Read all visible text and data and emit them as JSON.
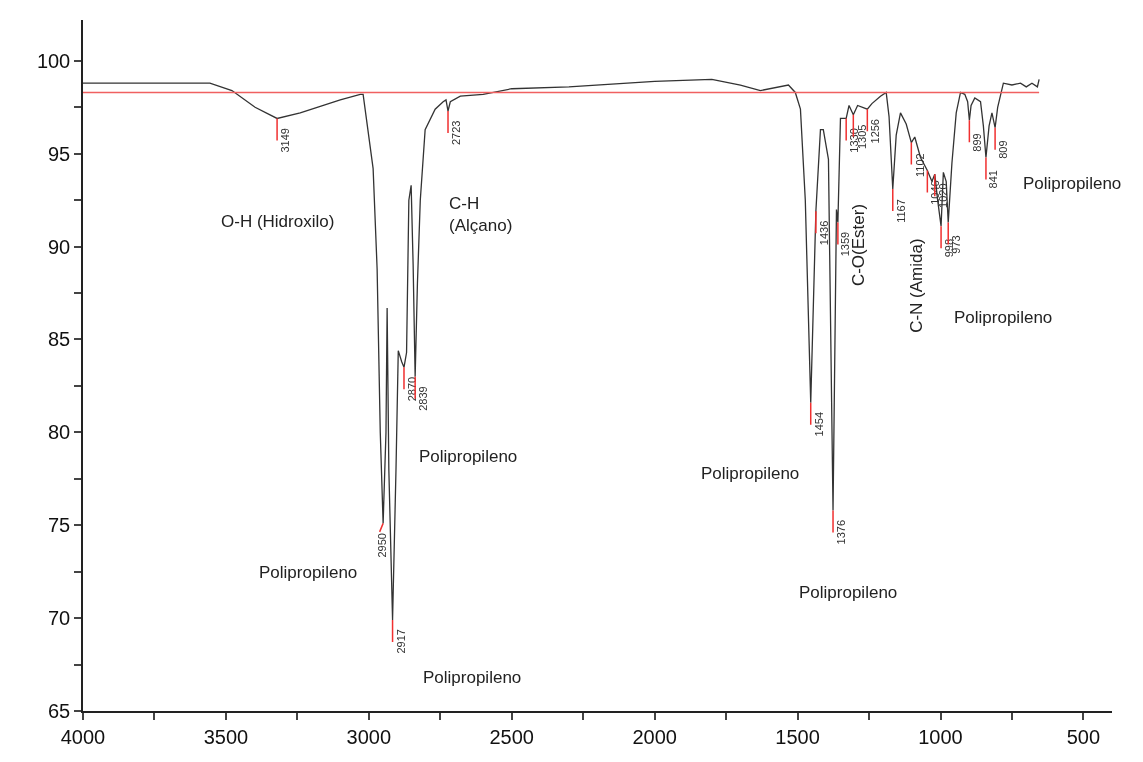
{
  "chart_data": {
    "type": "line",
    "xlim": [
      4000,
      400
    ],
    "ylim": [
      65,
      102.2
    ],
    "xticks": [
      4000,
      {
        "value": 3750,
        "label": null
      },
      3500,
      {
        "value": 3250,
        "label": null
      },
      3000,
      {
        "value": 2750,
        "label": null
      },
      2500,
      {
        "value": 2250,
        "label": null
      },
      2000,
      {
        "value": 1750,
        "label": null
      },
      1500,
      {
        "value": 1250,
        "label": null
      },
      1000,
      {
        "value": 750,
        "label": null
      },
      500
    ],
    "yticks": [
      65,
      {
        "value": 67.5,
        "label": null
      },
      70,
      {
        "value": 72.5,
        "label": null
      },
      75,
      {
        "value": 77.5,
        "label": null
      },
      80,
      {
        "value": 82.5,
        "label": null
      },
      85,
      {
        "value": 87.5,
        "label": null
      },
      90,
      {
        "value": 92.5,
        "label": null
      },
      95,
      {
        "value": 97.5,
        "label": null
      },
      100
    ],
    "grid": false,
    "marker": "none",
    "line_style": "solid",
    "series": [
      {
        "color": "#333333",
        "x": [
          4000,
          3556,
          3479,
          3398,
          3321,
          3240,
          3100,
          3030,
          3020,
          2985,
          2971,
          2960,
          2950,
          2940,
          2936,
          2930,
          2917,
          2905,
          2897,
          2885,
          2877,
          2868,
          2860,
          2852,
          2845,
          2838,
          2830,
          2820,
          2803,
          2768,
          2740,
          2730,
          2723,
          2715,
          2680,
          2600,
          2500,
          2300,
          2000,
          1800,
          1700,
          1630,
          1532,
          1508,
          1490,
          1473,
          1454,
          1436,
          1420,
          1410,
          1392,
          1376,
          1364,
          1359,
          1350,
          1330,
          1320,
          1305,
          1290,
          1256,
          1240,
          1210,
          1190,
          1180,
          1167,
          1155,
          1140,
          1120,
          1102,
          1090,
          1070,
          1046,
          1030,
          1020,
          1010,
          998,
          990,
          980,
          973,
          960,
          945,
          930,
          915,
          905,
          899,
          893,
          880,
          860,
          850,
          841,
          830,
          820,
          809,
          800,
          780,
          750,
          720,
          700,
          680,
          661,
          655
        ],
        "values": [
          98.8,
          98.8,
          98.4,
          97.5,
          96.9,
          97.2,
          97.9,
          98.2,
          98.2,
          94.2,
          88.8,
          80,
          75.1,
          80,
          86.7,
          78,
          69.9,
          78,
          84.4,
          83.8,
          83.5,
          84.3,
          92.5,
          93.3,
          89,
          83.0,
          88,
          92.5,
          96.3,
          97.4,
          97.8,
          97.9,
          97.3,
          97.8,
          98.1,
          98.2,
          98.5,
          98.6,
          98.9,
          99.0,
          98.7,
          98.4,
          98.7,
          98.3,
          97.4,
          92.5,
          81.6,
          91.9,
          96.3,
          96.3,
          94.7,
          75.8,
          92,
          91.3,
          96.9,
          96.9,
          97.6,
          97.1,
          97.6,
          97.4,
          97.7,
          98.1,
          98.3,
          97,
          93.1,
          96,
          97.2,
          96.6,
          95.6,
          95.9,
          94.8,
          94.1,
          93.5,
          93.9,
          92.5,
          91.1,
          94.0,
          93.5,
          91.3,
          94.5,
          97.2,
          98.3,
          98.2,
          97.8,
          96.8,
          97.6,
          98.0,
          97.8,
          96.5,
          94.8,
          96.5,
          97.2,
          96.4,
          97.5,
          98.8,
          98.7,
          98.8,
          98.6,
          98.8,
          98.6,
          99.0
        ]
      }
    ],
    "ref_lines": [
      {
        "axis": "y",
        "value": 98.3,
        "color": "#f06060"
      }
    ],
    "annotations": [
      {
        "text": "3149",
        "x": 3321,
        "y": 96.9
      },
      {
        "text": "2723",
        "x": 2723,
        "y": 97.3
      },
      {
        "text": "2950",
        "x": 2950,
        "y": 75.1
      },
      {
        "text": "2917",
        "x": 2917,
        "y": 69.9
      },
      {
        "text": "2870",
        "x": 2877,
        "y": 83.5
      },
      {
        "text": "2839",
        "x": 2838,
        "y": 83.0
      },
      {
        "text": "1454",
        "x": 1454,
        "y": 81.6
      },
      {
        "text": "1436",
        "x": 1436,
        "y": 91.9
      },
      {
        "text": "1376",
        "x": 1376,
        "y": 75.8
      },
      {
        "text": "1359",
        "x": 1359,
        "y": 91.3
      },
      {
        "text": "1330",
        "x": 1330,
        "y": 96.9
      },
      {
        "text": "1305",
        "x": 1305,
        "y": 97.1
      },
      {
        "text": "1256",
        "x": 1256,
        "y": 97.4
      },
      {
        "text": "1167",
        "x": 1167,
        "y": 93.1
      },
      {
        "text": "1102",
        "x": 1102,
        "y": 95.6
      },
      {
        "text": "1046",
        "x": 1046,
        "y": 94.1
      },
      {
        "text": "1020",
        "x": 1020,
        "y": 93.9
      },
      {
        "text": "998",
        "x": 998,
        "y": 91.1
      },
      {
        "text": "973",
        "x": 973,
        "y": 91.3
      },
      {
        "text": "899",
        "x": 899,
        "y": 96.8
      },
      {
        "text": "841",
        "x": 841,
        "y": 94.8
      },
      {
        "text": "809",
        "x": 809,
        "y": 96.4
      },
      "C-O(Ester)",
      "C-N (Amida)",
      "O-H (Hidroxilo)",
      "C-H\n(Alçano)",
      "Polipropileno",
      "Polipropileno",
      "Polipropileno",
      "Polipropileno",
      "Polipropileno",
      "Polipropileno",
      "Polipropileno"
    ]
  }
}
